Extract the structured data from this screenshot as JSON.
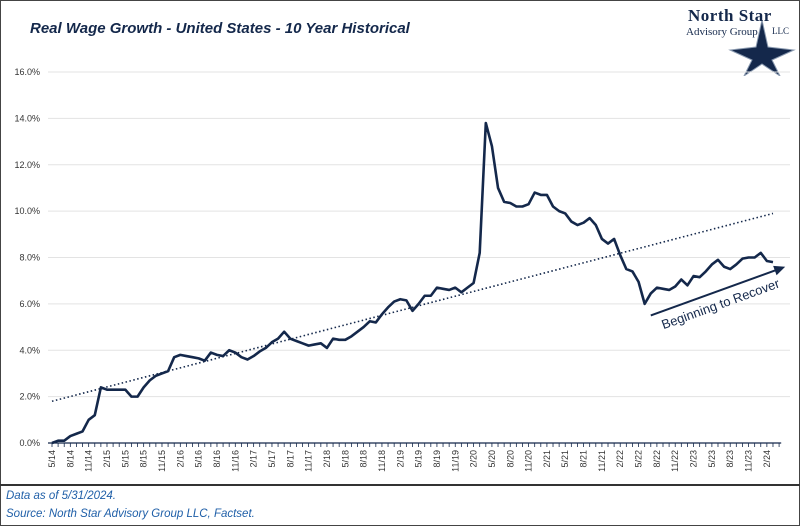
{
  "title": "Real Wage Growth - United States - 10 Year Historical",
  "logo": {
    "name": "North Star",
    "subtitle": "Advisory Group",
    "suffix": "LLC"
  },
  "footer": {
    "data_as_of": "Data as of 5/31/2024.",
    "source": "Source: North Star Advisory Group LLC, Factset."
  },
  "colors": {
    "line": "#14284b",
    "grid": "#e3e3e3",
    "footer_text": "#1f5fa8"
  },
  "chart_data": {
    "type": "line",
    "title": "Real Wage Growth - United States - 10 Year Historical",
    "xlabel": "",
    "ylabel": "",
    "ylim": [
      0,
      16
    ],
    "yticks": [
      "0.0%",
      "2.0%",
      "4.0%",
      "6.0%",
      "8.0%",
      "10.0%",
      "12.0%",
      "14.0%",
      "16.0%"
    ],
    "grid": true,
    "x_start": "5/14",
    "x_frequency": "monthly",
    "xtick_labels": [
      "5/14",
      "8/14",
      "11/14",
      "2/15",
      "5/15",
      "8/15",
      "11/15",
      "2/16",
      "5/16",
      "8/16",
      "11/16",
      "2/17",
      "5/17",
      "8/17",
      "11/17",
      "2/18",
      "5/18",
      "8/18",
      "11/18",
      "2/19",
      "5/19",
      "8/19",
      "11/19",
      "2/20",
      "5/20",
      "8/20",
      "11/20",
      "2/21",
      "5/21",
      "8/21",
      "11/21",
      "2/22",
      "5/22",
      "8/22",
      "11/22",
      "2/23",
      "5/23",
      "8/23",
      "11/23",
      "2/24"
    ],
    "series": [
      {
        "values": [
          0.0,
          0.1,
          0.1,
          0.3,
          0.4,
          0.5,
          1.0,
          1.2,
          2.4,
          2.3,
          2.3,
          2.3,
          2.3,
          2.0,
          2.0,
          2.4,
          2.7,
          2.9,
          3.0,
          3.1,
          3.7,
          3.8,
          3.75,
          3.7,
          3.65,
          3.55,
          3.9,
          3.8,
          3.75,
          4.0,
          3.9,
          3.7,
          3.6,
          3.75,
          3.95,
          4.1,
          4.35,
          4.5,
          4.8,
          4.5,
          4.4,
          4.3,
          4.2,
          4.25,
          4.3,
          4.1,
          4.5,
          4.45,
          4.45,
          4.6,
          4.8,
          5.0,
          5.25,
          5.2,
          5.55,
          5.85,
          6.1,
          6.2,
          6.15,
          5.7,
          6.0,
          6.35,
          6.35,
          6.7,
          6.65,
          6.6,
          6.7,
          6.5,
          6.7,
          6.9,
          8.2,
          13.8,
          12.8,
          11.0,
          10.4,
          10.35,
          10.2,
          10.2,
          10.3,
          10.8,
          10.7,
          10.7,
          10.2,
          10.0,
          9.9,
          9.55,
          9.4,
          9.5,
          9.7,
          9.4,
          8.8,
          8.6,
          8.8,
          8.1,
          7.5,
          7.4,
          6.95,
          6.0,
          6.45,
          6.7,
          6.65,
          6.6,
          6.75,
          7.05,
          6.8,
          7.2,
          7.15,
          7.4,
          7.7,
          7.9,
          7.6,
          7.5,
          7.7,
          7.95,
          8.0,
          8.0,
          8.2,
          7.85,
          7.8
        ]
      }
    ],
    "trendline": {
      "style": "dotted",
      "start": 1.8,
      "end": 9.9
    },
    "annotations": [
      {
        "text": "Beginning to Recover",
        "arrow_from": {
          "x": "7/22",
          "y": 5.5
        },
        "arrow_to": {
          "x": "5/24",
          "y": 7.6
        }
      }
    ]
  }
}
